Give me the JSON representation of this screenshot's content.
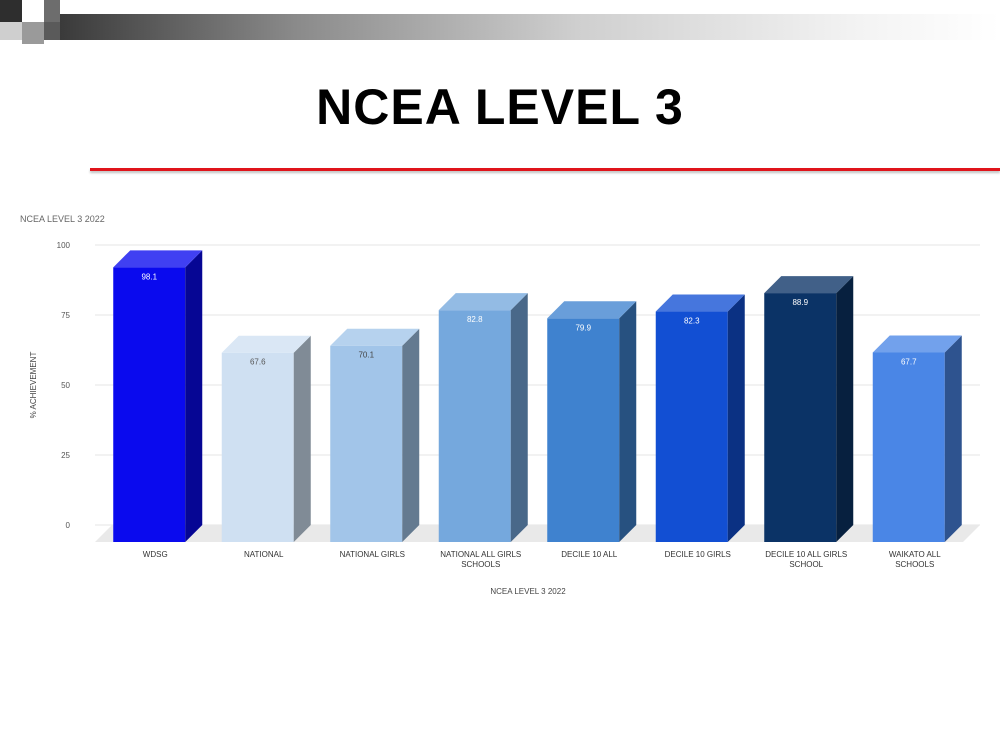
{
  "slide": {
    "title": "NCEA LEVEL 3",
    "chart_caption": "NCEA LEVEL 3 2022"
  },
  "colors": {
    "title_rule": "#e0141b",
    "grid": "#e6e6e6",
    "floor": "#e9e9e9"
  },
  "chart_data": {
    "type": "bar",
    "title": "NCEA LEVEL 3 2022",
    "xlabel": "NCEA LEVEL 3 2022",
    "ylabel": "% ACHIEVEMENT",
    "ylim": [
      0,
      100
    ],
    "yticks": [
      0,
      25,
      50,
      75,
      100
    ],
    "grid": true,
    "style": "3d-bar",
    "categories": [
      "WDSG",
      "NATIONAL",
      "NATIONAL GIRLS",
      "NATIONAL ALL GIRLS SCHOOLS",
      "DECILE 10 ALL",
      "DECILE 10 GIRLS",
      "DECILE 10 ALL GIRLS SCHOOL",
      "WAIKATO ALL SCHOOLS"
    ],
    "category_lines": [
      [
        "WDSG"
      ],
      [
        "NATIONAL"
      ],
      [
        "NATIONAL GIRLS"
      ],
      [
        "NATIONAL ALL GIRLS",
        "SCHOOLS"
      ],
      [
        "DECILE 10 ALL"
      ],
      [
        "DECILE 10 GIRLS"
      ],
      [
        "DECILE 10 ALL GIRLS",
        "SCHOOL"
      ],
      [
        "WAIKATO ALL",
        "SCHOOLS"
      ]
    ],
    "values": [
      98.1,
      67.6,
      70.1,
      82.8,
      79.9,
      82.3,
      88.9,
      67.7
    ],
    "data_labels": [
      "98.1",
      "67.6",
      "70.1",
      "82.8",
      "79.9",
      "82.3",
      "88.9",
      "67.7"
    ],
    "bar_colors": [
      "#0a0aee",
      "#cfe0f2",
      "#a2c5e9",
      "#75a8dd",
      "#3f82cf",
      "#124fd3",
      "#0b3366",
      "#4a86e6"
    ],
    "label_colors": [
      "#ffffff",
      "#555555",
      "#444444",
      "#ffffff",
      "#ffffff",
      "#ffffff",
      "#ffffff",
      "#ffffff"
    ]
  }
}
